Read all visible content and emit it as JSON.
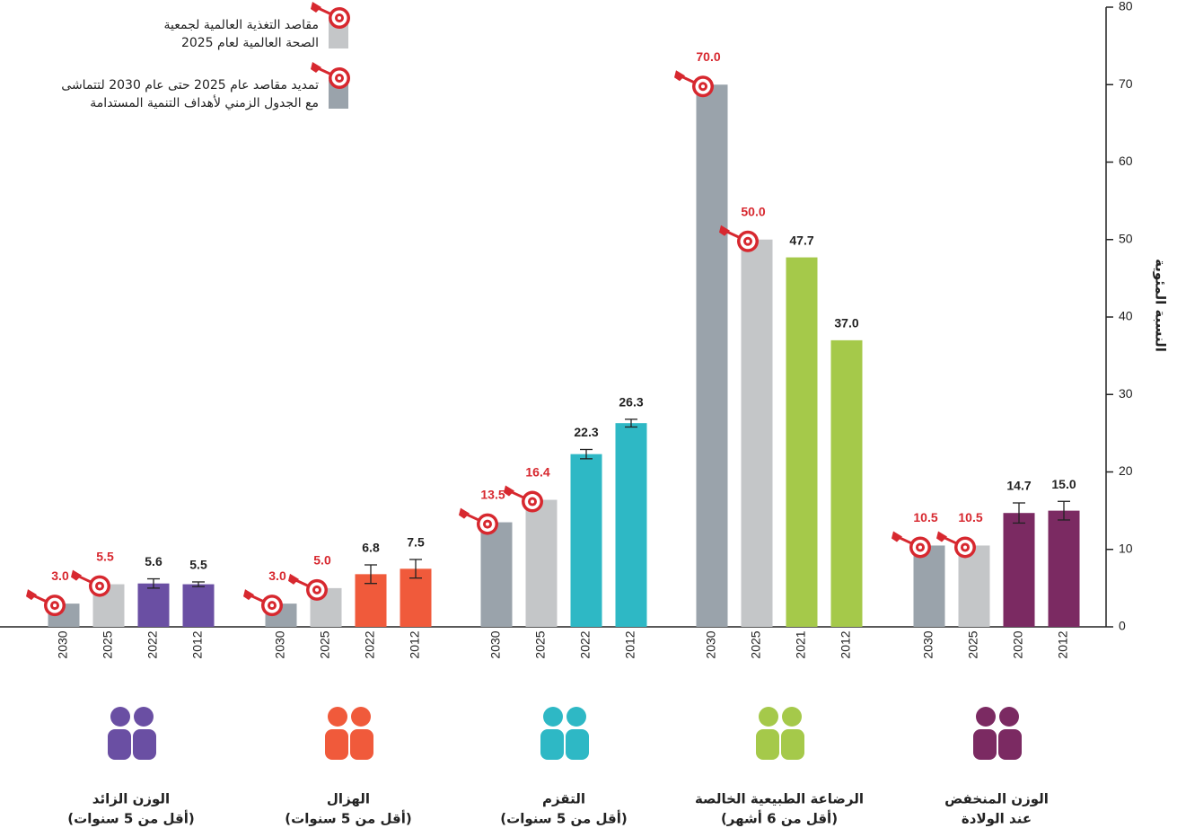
{
  "chart_data": {
    "type": "bar",
    "ylabel": "النسبة المئوية",
    "ylim": [
      0,
      80
    ],
    "yticks": [
      0,
      10,
      20,
      30,
      40,
      50,
      60,
      70,
      80
    ],
    "target_color": "#d7282f",
    "legend": [
      {
        "lines": [
          "مقاصد التغذية العالمية لجمعية",
          "الصحة العالمية لعام 2025"
        ],
        "color": "#c4c6c8"
      },
      {
        "lines": [
          "تمديد مقاصد عام 2025 حتى عام 2030 لتتماشى",
          "مع الجدول الزمني لأهداف التنمية المستدامة"
        ],
        "color": "#9aa3ab"
      }
    ],
    "groups": [
      {
        "label": [
          "الوزن الزائد",
          "(أقل من 5 سنوات)"
        ],
        "categories": [
          "2030",
          "2025",
          "2022",
          "2012"
        ],
        "values": [
          3.0,
          5.5,
          5.6,
          5.5
        ],
        "value_labels": [
          "3.0",
          "5.5",
          "5.6",
          "5.5"
        ],
        "errors": [
          null,
          null,
          0.6,
          0.3
        ],
        "colors": [
          "#9aa3ab",
          "#c4c6c8",
          "#6a4fa3",
          "#6a4fa3"
        ],
        "targets": [
          true,
          true,
          false,
          false
        ]
      },
      {
        "label": [
          "الهزال",
          "(أقل من 5 سنوات)"
        ],
        "categories": [
          "2030",
          "2025",
          "2022",
          "2012"
        ],
        "values": [
          3.0,
          5.0,
          6.8,
          7.5
        ],
        "value_labels": [
          "3.0",
          "5.0",
          "6.8",
          "7.5"
        ],
        "errors": [
          null,
          null,
          1.2,
          1.2
        ],
        "colors": [
          "#9aa3ab",
          "#c4c6c8",
          "#f05a3b",
          "#f05a3b"
        ],
        "targets": [
          true,
          true,
          false,
          false
        ]
      },
      {
        "label": [
          "التقزم",
          "(أقل من 5 سنوات)"
        ],
        "categories": [
          "2030",
          "2025",
          "2022",
          "2012"
        ],
        "values": [
          13.5,
          16.4,
          22.3,
          26.3
        ],
        "value_labels": [
          "13.5",
          "16.4",
          "22.3",
          "26.3"
        ],
        "errors": [
          null,
          null,
          0.6,
          0.5
        ],
        "colors": [
          "#9aa3ab",
          "#c4c6c8",
          "#2eb8c5",
          "#2eb8c5"
        ],
        "targets": [
          true,
          true,
          false,
          false
        ]
      },
      {
        "label": [
          "الرضاعة الطبيعية الخالصة",
          "(أقل من 6 أشهر)"
        ],
        "categories": [
          "2030",
          "2025",
          "2021",
          "2012"
        ],
        "values": [
          70.0,
          50.0,
          47.7,
          37.0
        ],
        "value_labels": [
          "70.0",
          "50.0",
          "47.7",
          "37.0"
        ],
        "errors": [
          null,
          null,
          null,
          null
        ],
        "colors": [
          "#9aa3ab",
          "#c4c6c8",
          "#a5c94a",
          "#a5c94a"
        ],
        "targets": [
          true,
          true,
          false,
          false
        ]
      },
      {
        "label": [
          "الوزن المنخفض",
          "عند الولادة"
        ],
        "categories": [
          "2030",
          "2025",
          "2020",
          "2012"
        ],
        "values": [
          10.5,
          10.5,
          14.7,
          15.0
        ],
        "value_labels": [
          "10.5",
          "10.5",
          "14.7",
          "15.0"
        ],
        "errors": [
          null,
          null,
          1.3,
          1.2
        ],
        "colors": [
          "#9aa3ab",
          "#c4c6c8",
          "#7b2a62",
          "#7b2a62"
        ],
        "targets": [
          true,
          true,
          false,
          false
        ]
      }
    ]
  }
}
